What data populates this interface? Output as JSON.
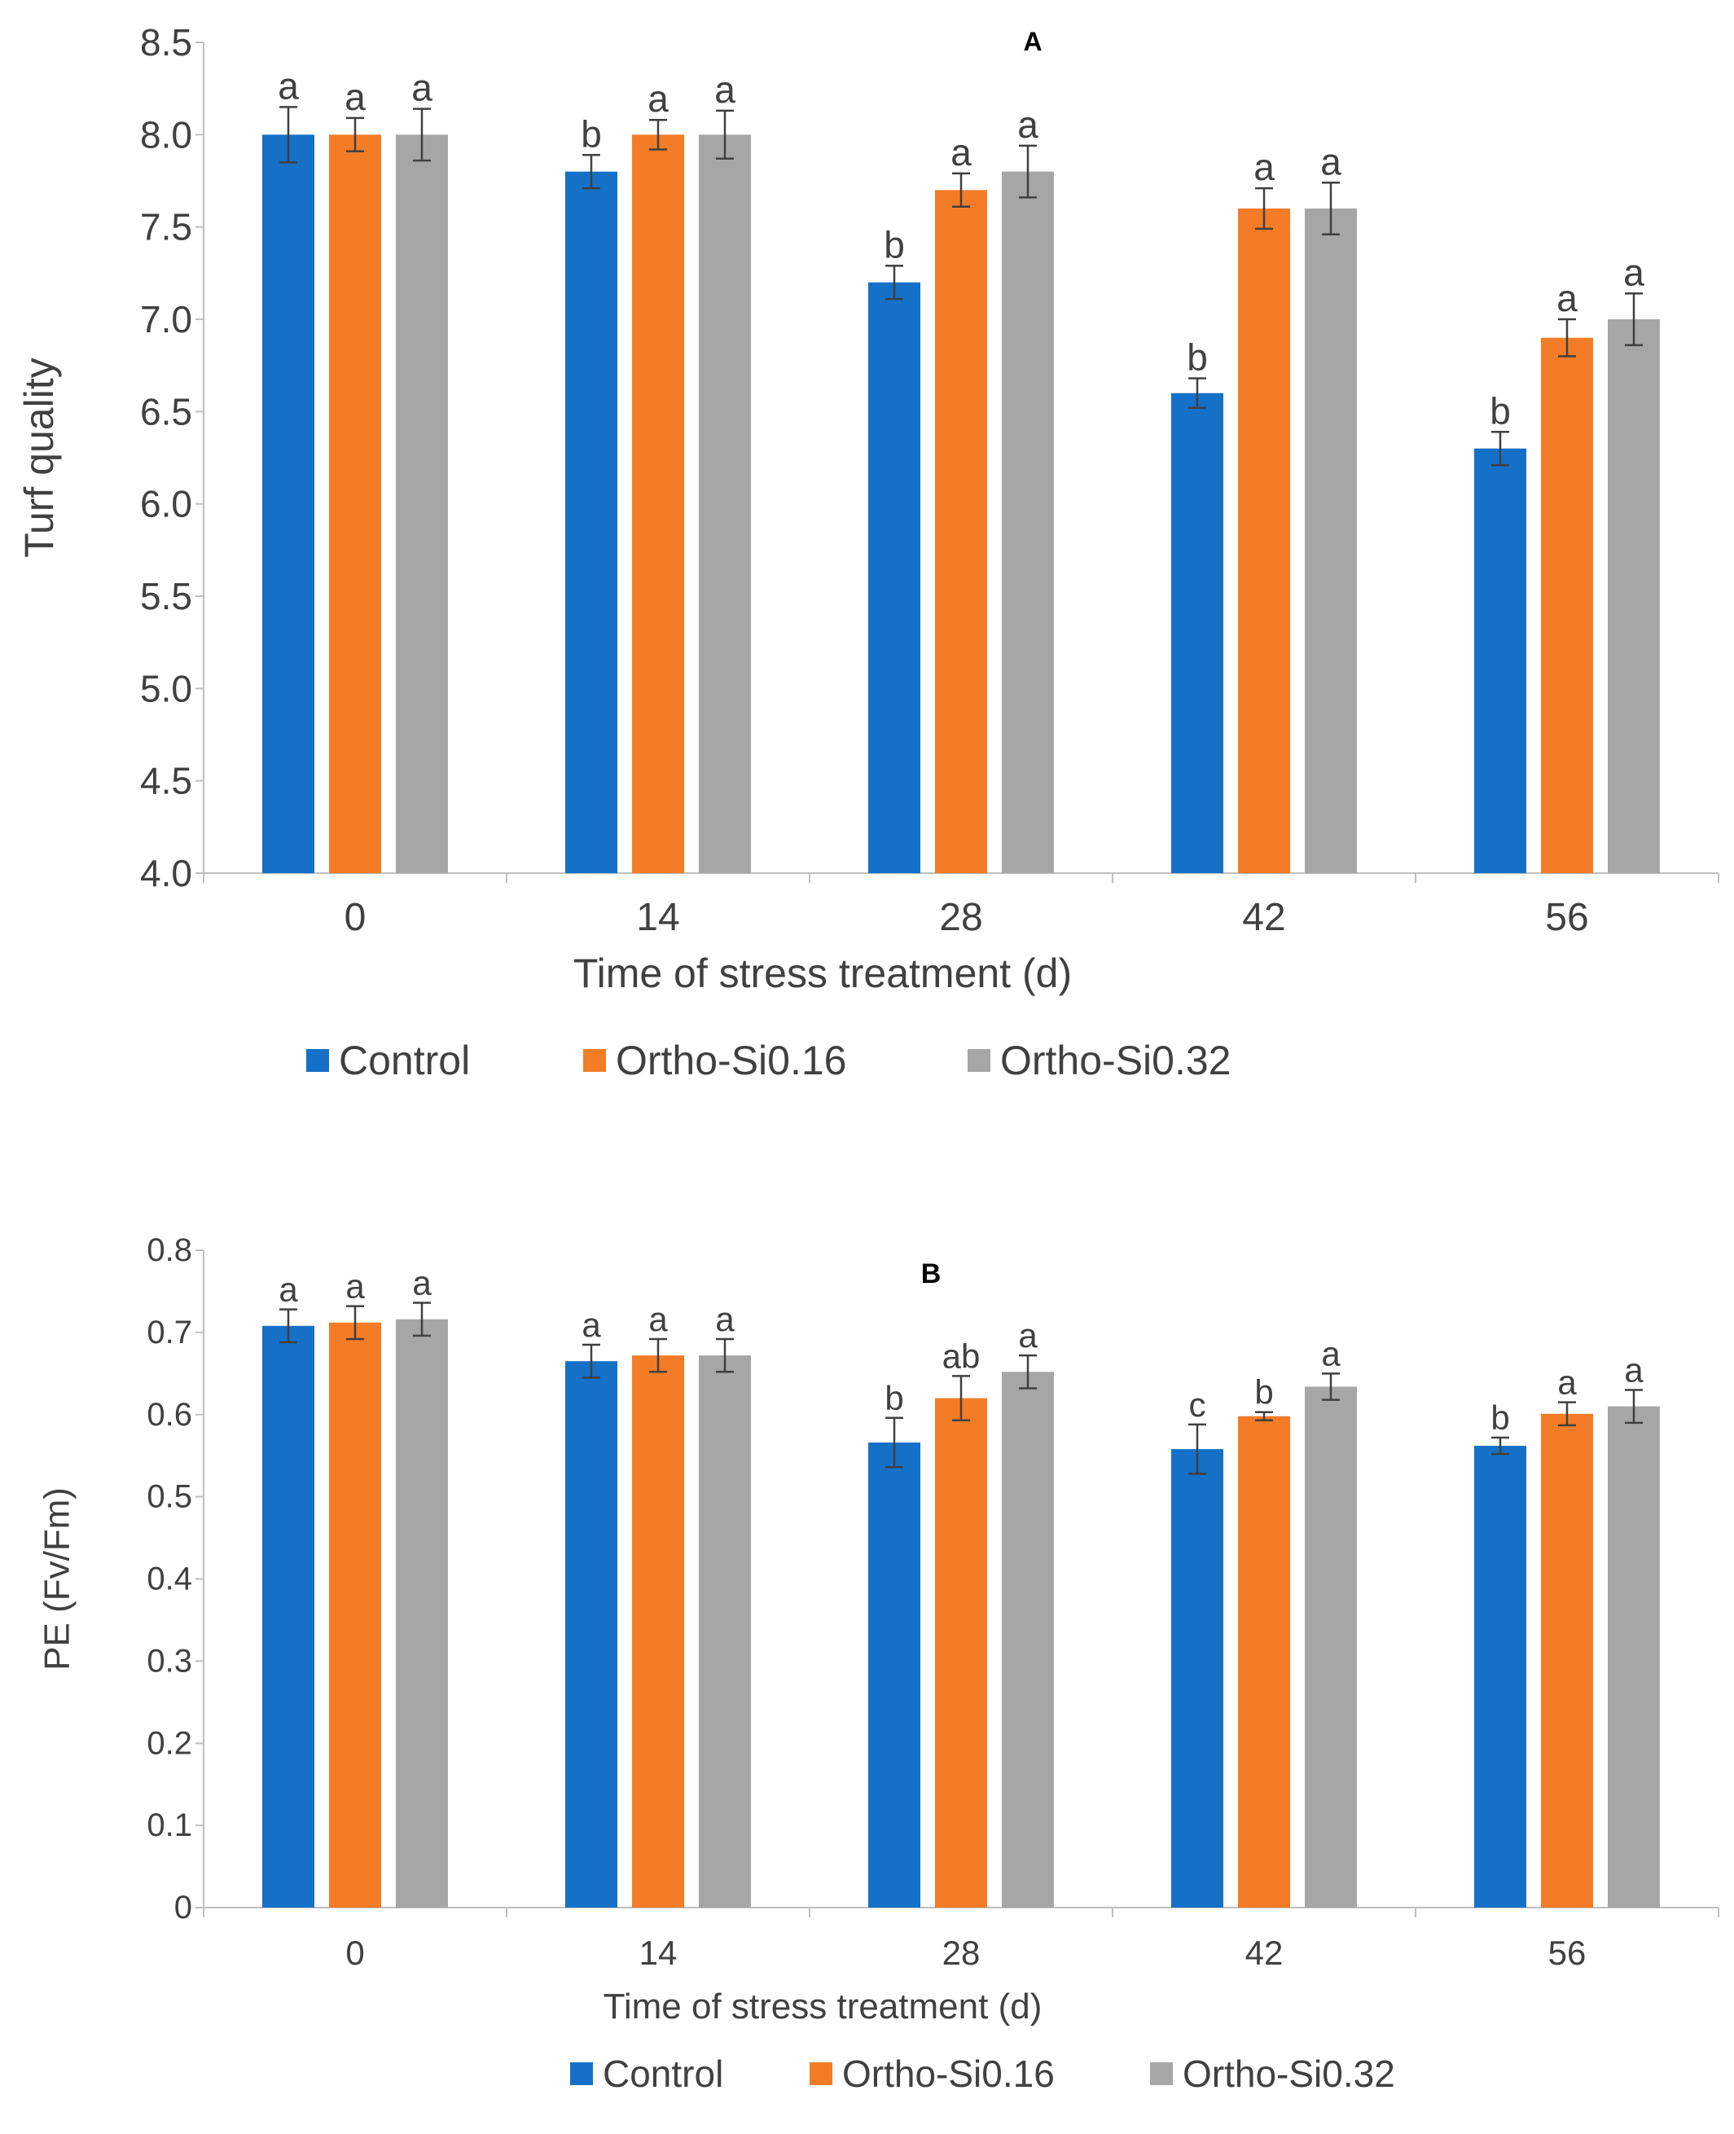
{
  "colors": {
    "control": "#1570C8",
    "ortho016": "#F47C27",
    "ortho032": "#A6A6A6",
    "axis": "#BFBFBF",
    "text": "#404040"
  },
  "legend": {
    "items": [
      "Control",
      "Ortho-Si0.16",
      "Ortho-Si0.32"
    ]
  },
  "chart_data": [
    {
      "type": "bar",
      "panel_label": "A",
      "title": "",
      "xlabel": "Time of stress treatment (d)",
      "ylabel": "Turf quality",
      "ylim": [
        4.0,
        8.5
      ],
      "yticks": [
        "4.0",
        "4.5",
        "5.0",
        "5.5",
        "6.0",
        "6.5",
        "7.0",
        "7.5",
        "8.0",
        "8.5"
      ],
      "categories": [
        "0",
        "14",
        "28",
        "42",
        "56"
      ],
      "grid": false,
      "legend_position": "bottom",
      "series": [
        {
          "name": "Control",
          "values": [
            8.0,
            7.8,
            7.2,
            6.6,
            6.3
          ],
          "errors": [
            0.15,
            0.09,
            0.09,
            0.08,
            0.09
          ],
          "letters": [
            "a",
            "b",
            "b",
            "b",
            "b"
          ]
        },
        {
          "name": "Ortho-Si0.16",
          "values": [
            8.0,
            8.0,
            7.7,
            7.6,
            6.9
          ],
          "errors": [
            0.09,
            0.08,
            0.09,
            0.11,
            0.1
          ],
          "letters": [
            "a",
            "a",
            "a",
            "a",
            "a"
          ]
        },
        {
          "name": "Ortho-Si0.32",
          "values": [
            8.0,
            8.0,
            7.8,
            7.6,
            7.0
          ],
          "errors": [
            0.14,
            0.13,
            0.14,
            0.14,
            0.14
          ],
          "letters": [
            "a",
            "a",
            "a",
            "a",
            "a"
          ]
        }
      ]
    },
    {
      "type": "bar",
      "panel_label": "B",
      "title": "",
      "xlabel": "Time of stress treatment (d)",
      "ylabel": "PE (Fv/Fm)",
      "ylim": [
        0,
        0.8
      ],
      "yticks": [
        "0",
        "0.1",
        "0.2",
        "0.3",
        "0.4",
        "0.5",
        "0.6",
        "0.7",
        "0.8"
      ],
      "categories": [
        "0",
        "14",
        "28",
        "42",
        "56"
      ],
      "grid": false,
      "legend_position": "bottom",
      "series": [
        {
          "name": "Control",
          "values": [
            0.708,
            0.665,
            0.566,
            0.558,
            0.562
          ],
          "errors": [
            0.02,
            0.02,
            0.03,
            0.03,
            0.01
          ],
          "letters": [
            "a",
            "a",
            "b",
            "c",
            "b"
          ]
        },
        {
          "name": "Ortho-Si0.16",
          "values": [
            0.712,
            0.672,
            0.62,
            0.598,
            0.601
          ],
          "errors": [
            0.02,
            0.02,
            0.027,
            0.005,
            0.014
          ],
          "letters": [
            "a",
            "a",
            "ab",
            "b",
            "a"
          ]
        },
        {
          "name": "Ortho-Si0.32",
          "values": [
            0.716,
            0.672,
            0.652,
            0.634,
            0.61
          ],
          "errors": [
            0.02,
            0.02,
            0.02,
            0.016,
            0.02
          ],
          "letters": [
            "a",
            "a",
            "a",
            "a",
            "a"
          ]
        }
      ]
    }
  ]
}
